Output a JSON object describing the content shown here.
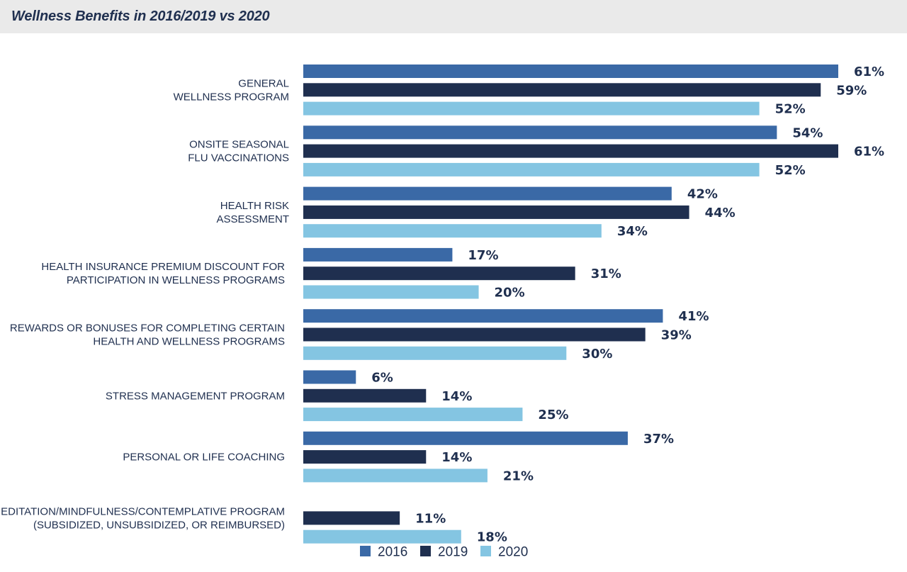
{
  "title": "Wellness Benefits in 2016/2019 vs 2020",
  "colors": {
    "2016": "#3a69a6",
    "2019": "#1f2f4f",
    "2020": "#84c5e2"
  },
  "chart_data": {
    "type": "bar",
    "orientation": "horizontal",
    "categories": [
      [
        "GENERAL",
        "WELLNESS PROGRAM"
      ],
      [
        "ONSITE SEASONAL",
        "FLU VACCINATIONS"
      ],
      [
        "HEALTH RISK",
        "ASSESSMENT"
      ],
      [
        "HEALTH INSURANCE PREMIUM DISCOUNT FOR",
        "PARTICIPATION IN WELLNESS PROGRAMS"
      ],
      [
        "REWARDS OR BONUSES FOR COMPLETING CERTAIN",
        "HEALTH AND WELLNESS PROGRAMS"
      ],
      [
        "STRESS MANAGEMENT PROGRAM"
      ],
      [
        "PERSONAL OR LIFE COACHING"
      ],
      [
        "MEDITATION/MINDFULNESS/CONTEMPLATIVE PROGRAM",
        "(SUBSIDIZED, UNSUBSIDIZED, OR REIMBURSED)"
      ]
    ],
    "series": [
      {
        "name": "2016",
        "values": [
          61,
          54,
          42,
          17,
          41,
          6,
          37,
          null
        ]
      },
      {
        "name": "2019",
        "values": [
          59,
          61,
          44,
          31,
          39,
          14,
          14,
          11
        ]
      },
      {
        "name": "2020",
        "values": [
          52,
          52,
          34,
          20,
          30,
          25,
          21,
          18
        ]
      }
    ],
    "value_suffix": "%",
    "xlim": [
      0,
      61
    ],
    "grid": false,
    "legend_position": "bottom-center"
  }
}
